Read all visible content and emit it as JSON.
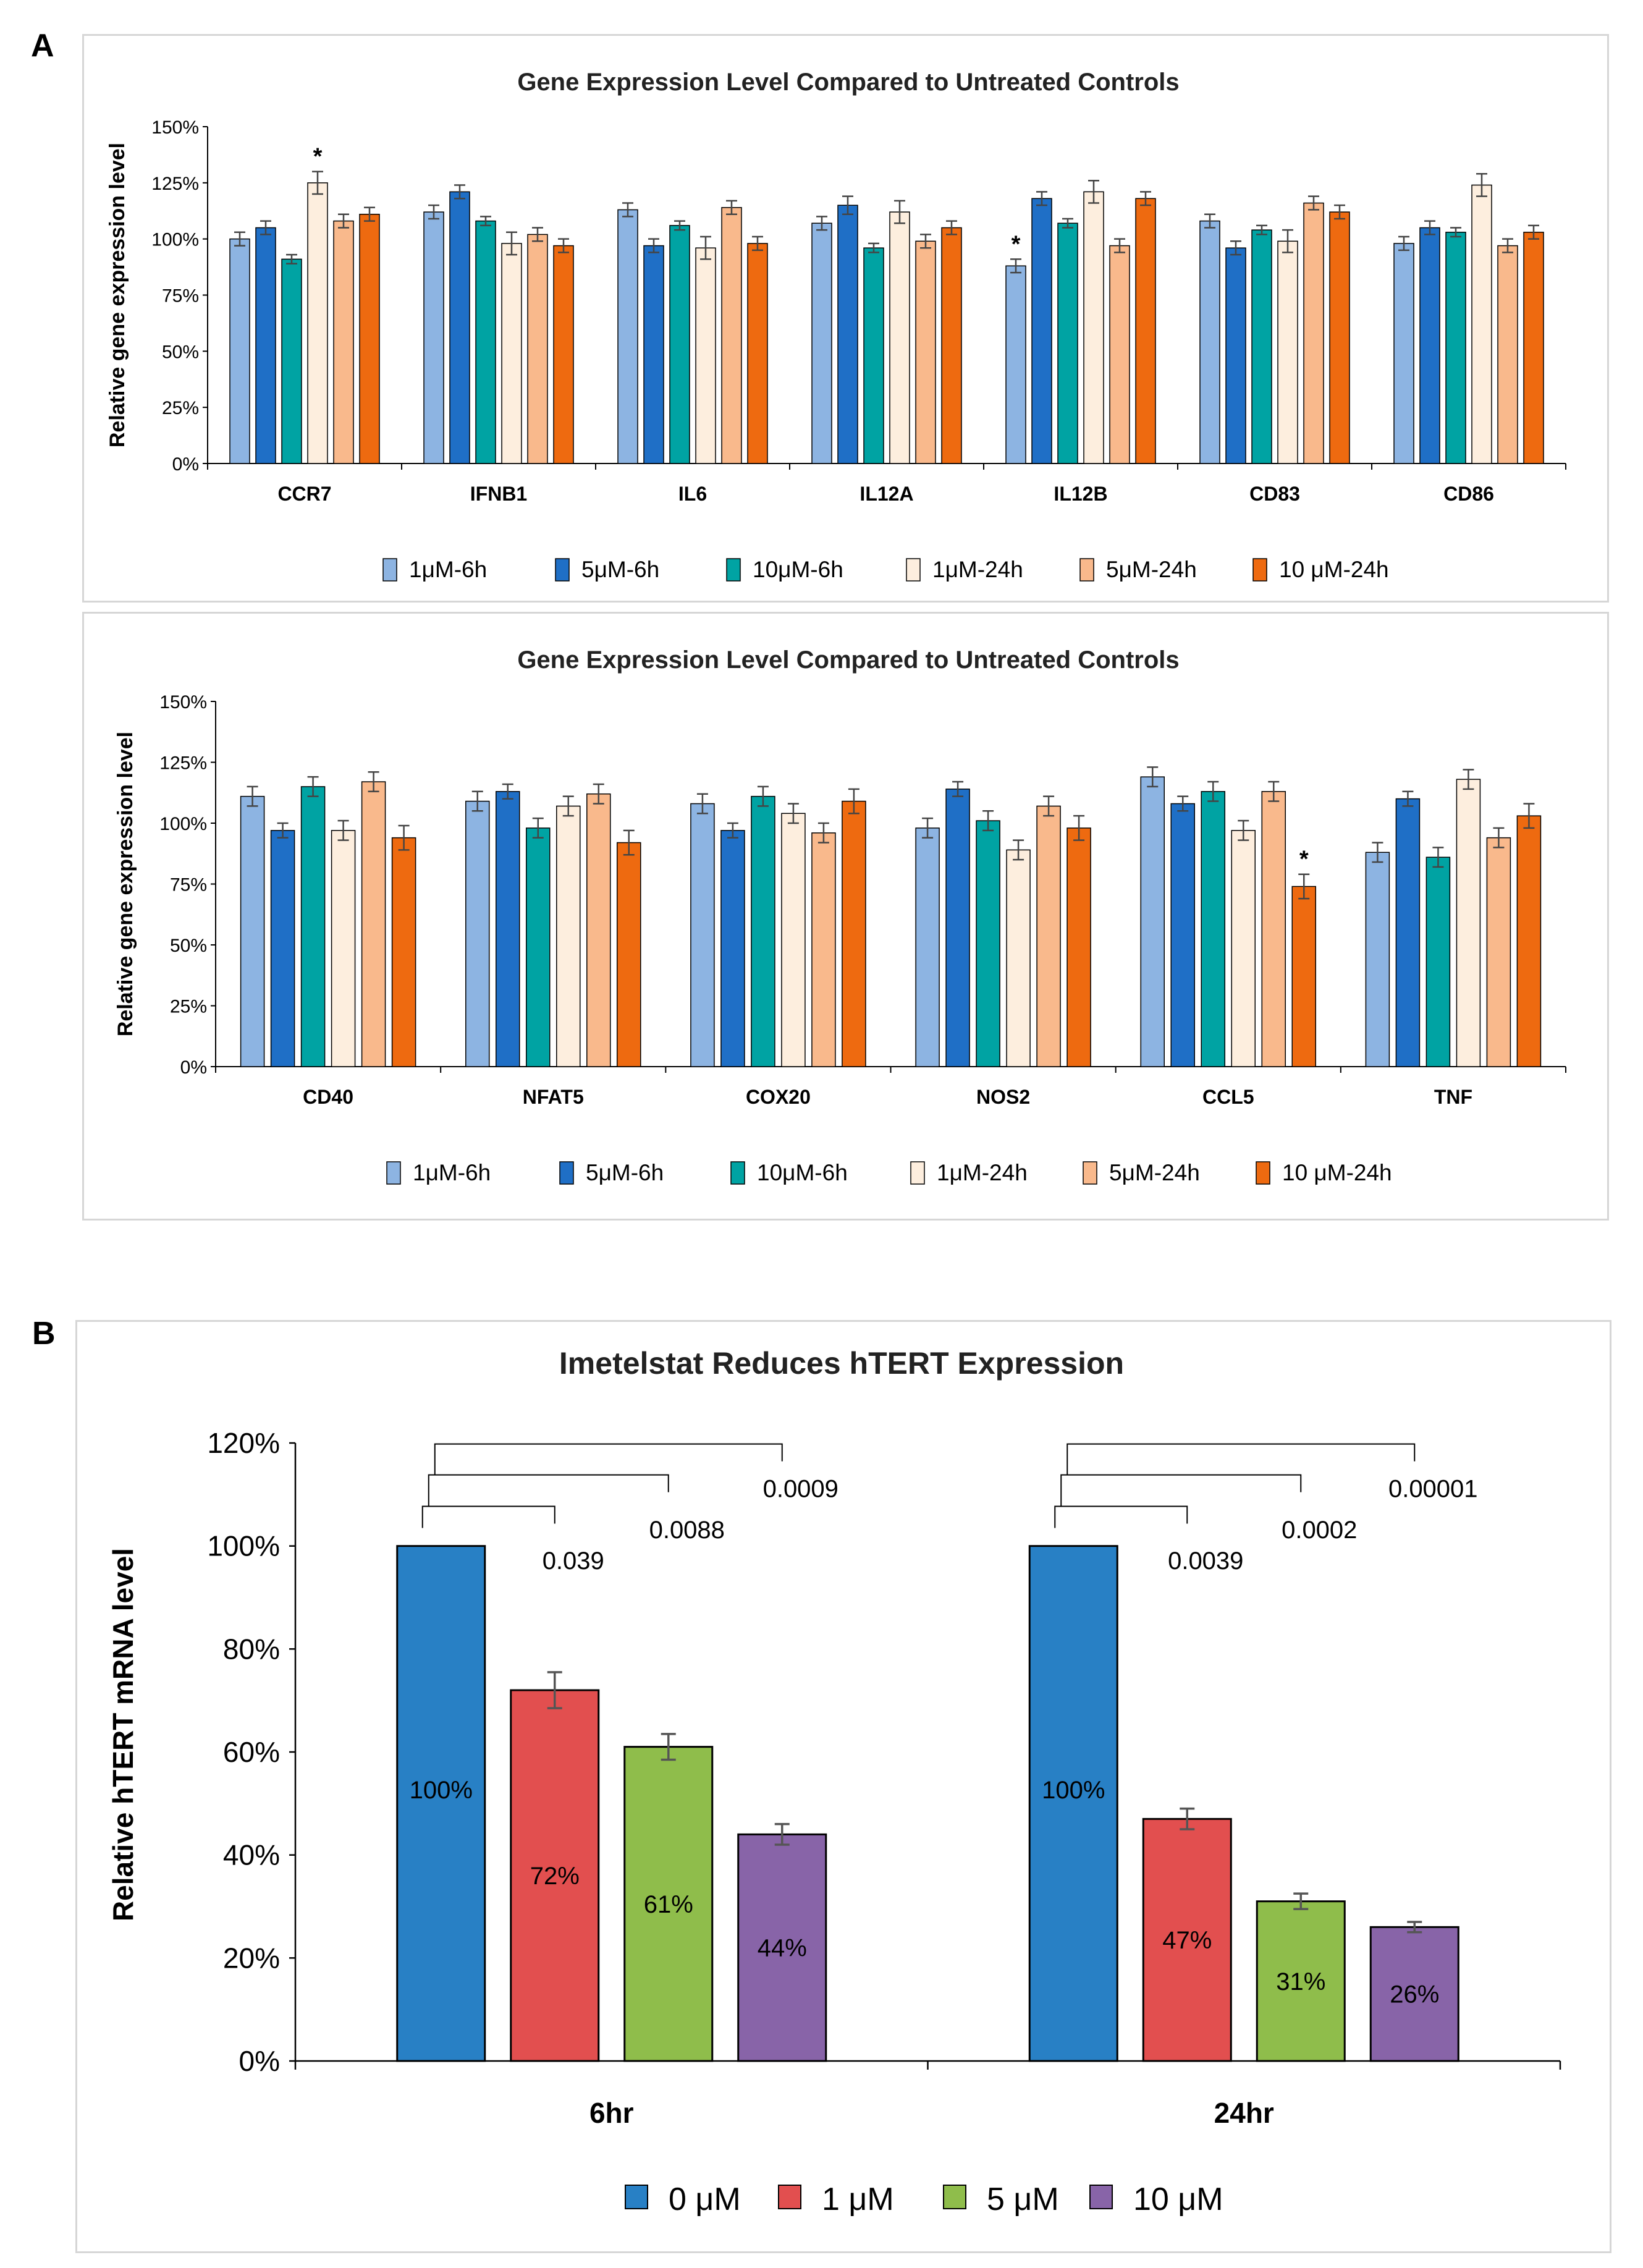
{
  "panel_labels": {
    "a": "A",
    "b": "B"
  },
  "colors": {
    "c1": "#8db4e2",
    "c2": "#1f6fc6",
    "c3": "#00a3a3",
    "c4": "#fdeede",
    "c5": "#f9b98c",
    "c6": "#ee6a10",
    "b0": "#2880c5",
    "b1": "#e24f4f",
    "b5": "#8fbd4b",
    "b10": "#8864a8"
  },
  "chart_data": [
    {
      "type": "bar",
      "title": "Gene Expression Level Compared to Untreated Controls",
      "ylabel": "Relative gene expression level",
      "xlabel": "",
      "ylim": [
        0,
        150
      ],
      "yticks": [
        "0%",
        "25%",
        "50%",
        "75%",
        "100%",
        "125%",
        "150%"
      ],
      "categories": [
        "CCR7",
        "IFNB1",
        "IL6",
        "IL12A",
        "IL12B",
        "CD83",
        "CD86"
      ],
      "series": [
        {
          "name": "1μM-6h",
          "values": [
            100,
            112,
            113,
            107,
            88,
            108,
            98
          ],
          "errors": [
            3,
            3,
            3,
            3,
            3,
            3,
            3
          ]
        },
        {
          "name": "5μM-6h",
          "values": [
            105,
            121,
            97,
            115,
            118,
            96,
            105
          ],
          "errors": [
            3,
            3,
            3,
            4,
            3,
            3,
            3
          ]
        },
        {
          "name": "10μM-6h",
          "values": [
            91,
            108,
            106,
            96,
            107,
            104,
            103
          ],
          "errors": [
            2,
            2,
            2,
            2,
            2,
            2,
            2
          ]
        },
        {
          "name": "1μM-24h",
          "values": [
            125,
            98,
            96,
            112,
            121,
            99,
            124
          ],
          "errors": [
            5,
            5,
            5,
            5,
            5,
            5,
            5
          ]
        },
        {
          "name": "5μM-24h",
          "values": [
            108,
            102,
            114,
            99,
            97,
            116,
            97
          ],
          "errors": [
            3,
            3,
            3,
            3,
            3,
            3,
            3
          ]
        },
        {
          "name": "10 μM-24h",
          "values": [
            111,
            97,
            98,
            105,
            118,
            112,
            103
          ],
          "errors": [
            3,
            3,
            3,
            3,
            3,
            3,
            3
          ]
        }
      ],
      "annotations": [
        {
          "text": "*",
          "category": "CCR7",
          "series": 3
        },
        {
          "text": "*",
          "category": "IL12B",
          "series": 0
        }
      ]
    },
    {
      "type": "bar",
      "title": "Gene Expression Level Compared to Untreated Controls",
      "ylabel": "Relative gene expression level",
      "xlabel": "",
      "ylim": [
        0,
        150
      ],
      "yticks": [
        "0%",
        "25%",
        "50%",
        "75%",
        "100%",
        "125%",
        "150%"
      ],
      "categories": [
        "CD40",
        "NFAT5",
        "COX20",
        "NOS2",
        "CCL5",
        "TNF"
      ],
      "series": [
        {
          "name": "1μM-6h",
          "values": [
            111,
            109,
            108,
            98,
            119,
            88
          ],
          "errors": [
            4,
            4,
            4,
            4,
            4,
            4
          ]
        },
        {
          "name": "5μM-6h",
          "values": [
            97,
            113,
            97,
            114,
            108,
            110
          ],
          "errors": [
            3,
            3,
            3,
            3,
            3,
            3
          ]
        },
        {
          "name": "10μM-6h",
          "values": [
            115,
            98,
            111,
            101,
            113,
            86
          ],
          "errors": [
            4,
            4,
            4,
            4,
            4,
            4
          ]
        },
        {
          "name": "1μM-24h",
          "values": [
            97,
            107,
            104,
            89,
            97,
            118
          ],
          "errors": [
            4,
            4,
            4,
            4,
            4,
            4
          ]
        },
        {
          "name": "5μM-24h",
          "values": [
            117,
            112,
            96,
            107,
            113,
            94
          ],
          "errors": [
            4,
            4,
            4,
            4,
            4,
            4
          ]
        },
        {
          "name": "10 μM-24h",
          "values": [
            94,
            92,
            109,
            98,
            74,
            103
          ],
          "errors": [
            5,
            5,
            5,
            5,
            5,
            5
          ]
        }
      ],
      "annotations": [
        {
          "text": "*",
          "category": "CCL5",
          "series": 5
        }
      ]
    },
    {
      "type": "bar",
      "title": "Imetelstat Reduces hTERT Expression",
      "ylabel": "Relative hTERT mRNA level",
      "xlabel": "",
      "ylim": [
        0,
        120
      ],
      "yticks": [
        "0%",
        "20%",
        "40%",
        "60%",
        "80%",
        "100%",
        "120%"
      ],
      "categories": [
        "6hr",
        "24hr"
      ],
      "series": [
        {
          "name": "0 μM",
          "values": [
            100,
            100
          ],
          "errors": [
            0,
            0
          ],
          "labels": [
            "100%",
            "100%"
          ]
        },
        {
          "name": "1 μM",
          "values": [
            72,
            47
          ],
          "errors": [
            3.5,
            2
          ],
          "labels": [
            "72%",
            "47%"
          ]
        },
        {
          "name": "5 μM",
          "values": [
            61,
            31
          ],
          "errors": [
            2.5,
            1.5
          ],
          "labels": [
            "61%",
            "31%"
          ]
        },
        {
          "name": "10 μM",
          "values": [
            44,
            26
          ],
          "errors": [
            2,
            1
          ],
          "labels": [
            "44%",
            "26%"
          ]
        }
      ],
      "pvalues": [
        [
          "0.039",
          "0.0088",
          "0.0009"
        ],
        [
          "0.0039",
          "0.0002",
          "0.00001"
        ]
      ]
    }
  ]
}
